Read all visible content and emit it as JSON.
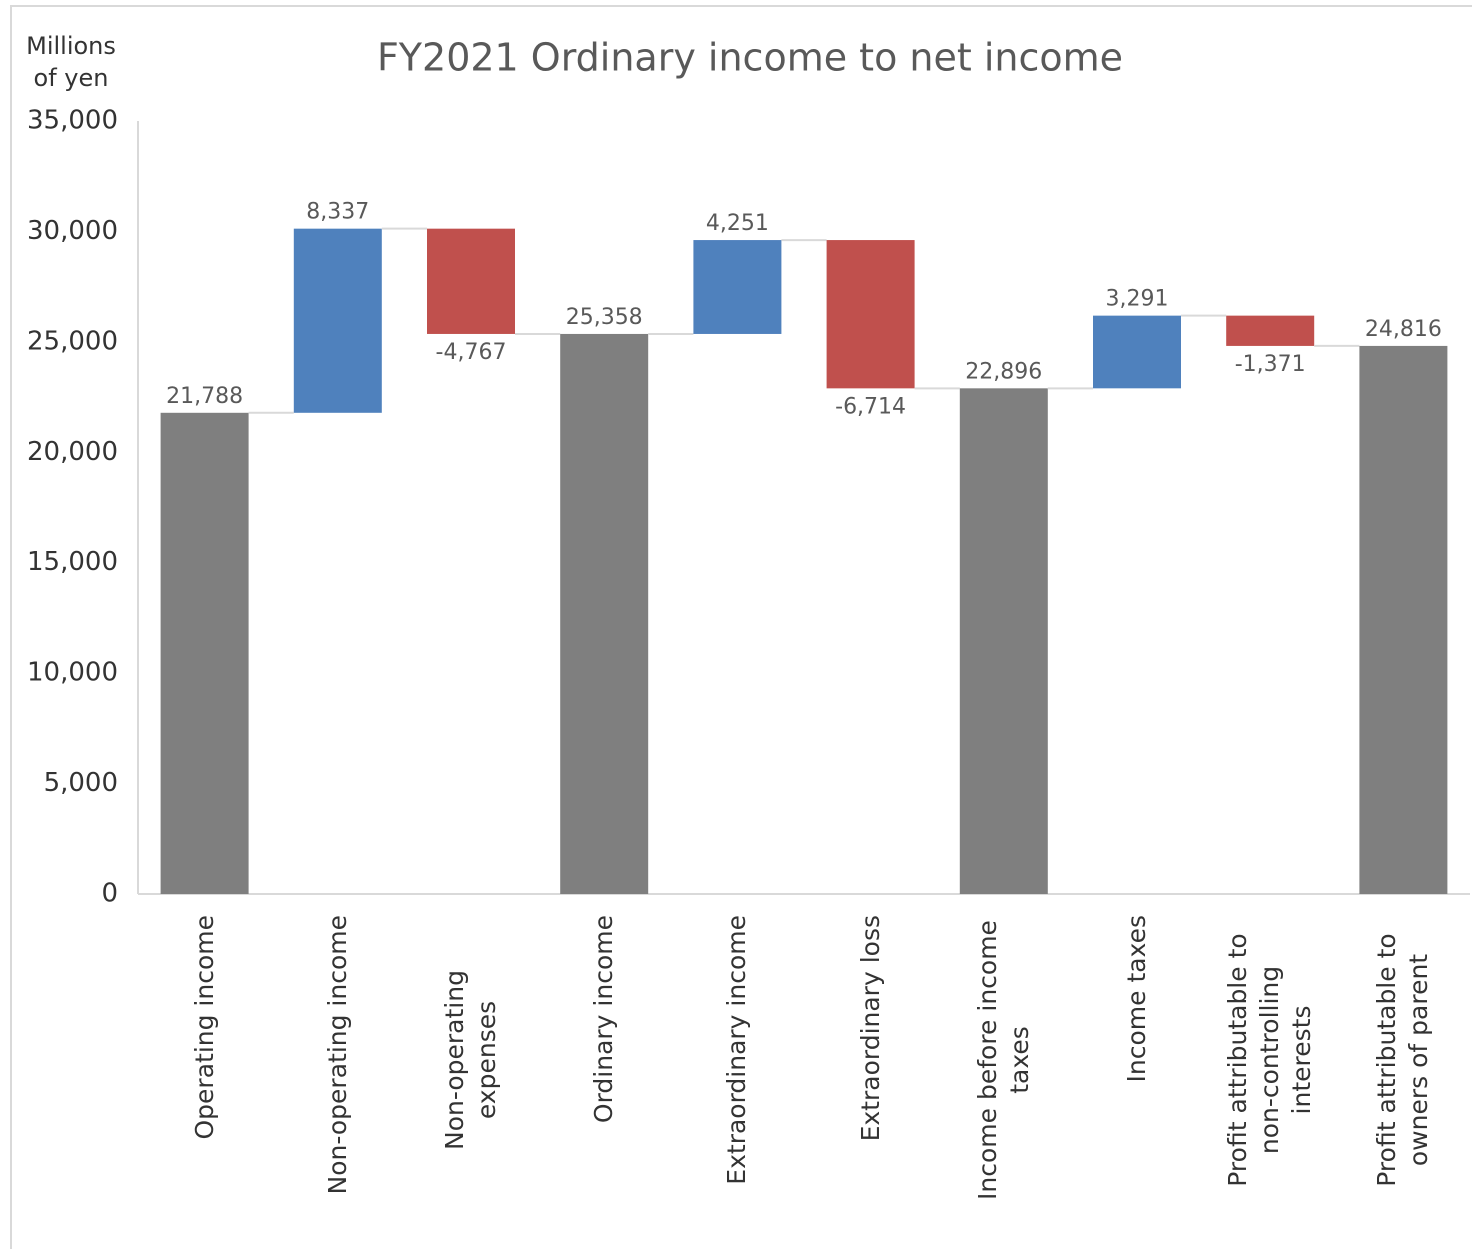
{
  "chart_data": {
    "type": "waterfall",
    "title": "FY2021 Ordinary income to net income",
    "ylabel": "Millions of yen",
    "categories": [
      "Operating income",
      "Non-operating income",
      "Non-operating expenses",
      "Ordinary income",
      "Extraordinary income",
      "Extraordinary loss",
      "Income before income taxes",
      "Income taxes",
      "Profit attributable to non-controlling interests",
      "Profit attributable to owners of parent"
    ],
    "values": [
      21788,
      8337,
      -4767,
      25358,
      4251,
      -6714,
      22896,
      3291,
      -1371,
      24816
    ],
    "value_labels": [
      "21,788",
      "8,337",
      "-4,767",
      "25,358",
      "4,251",
      "-6,714",
      "22,896",
      "3,291",
      "-1,371",
      "24,816"
    ],
    "is_total": [
      true,
      false,
      false,
      true,
      false,
      false,
      true,
      false,
      false,
      true
    ],
    "colors": {
      "total": "#7f7f7f",
      "increase": "#4f81bd",
      "decrease": "#c0504d"
    },
    "ylim": [
      0,
      35000
    ],
    "yticks": [
      {
        "value": 0,
        "label": "0"
      },
      {
        "value": 5000,
        "label": "5,000"
      },
      {
        "value": 10000,
        "label": "10,000"
      },
      {
        "value": 15000,
        "label": "15,000"
      },
      {
        "value": 20000,
        "label": "20,000"
      },
      {
        "value": 25000,
        "label": "25,000"
      },
      {
        "value": 30000,
        "label": "30,000"
      },
      {
        "value": 35000,
        "label": "35,000"
      }
    ]
  }
}
